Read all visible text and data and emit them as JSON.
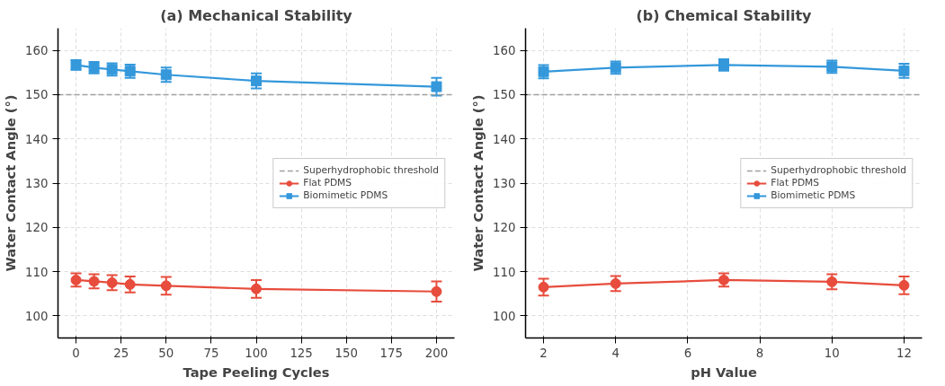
{
  "chart_data": [
    {
      "type": "line",
      "title": "(a) Mechanical Stability",
      "xlabel": "Tape Peeling Cycles",
      "ylabel": "Water Contact Angle (°)",
      "x": [
        0,
        10,
        20,
        30,
        50,
        100,
        200
      ],
      "xlim": [
        -10,
        210
      ],
      "xticks": [
        0,
        25,
        50,
        75,
        100,
        125,
        150,
        175,
        200
      ],
      "ylim": [
        95,
        165
      ],
      "yticks": [
        100,
        110,
        120,
        130,
        140,
        150,
        160
      ],
      "grid": true,
      "legend": "right",
      "ref_lines": [
        {
          "axis": "y",
          "value": 150,
          "label": "Superhydrophobic threshold",
          "color": "#a0a0a0",
          "line_style": "dashed"
        }
      ],
      "series": [
        {
          "name": "Flat PDMS",
          "color": "#e74c3c",
          "marker": "circle",
          "values": [
            108.1,
            107.8,
            107.5,
            107.1,
            106.8,
            106.1,
            105.5
          ],
          "errors": [
            1.5,
            1.6,
            1.7,
            1.8,
            2.0,
            2.0,
            2.3
          ]
        },
        {
          "name": "Biomimetic PDMS",
          "color": "#3498db",
          "marker": "square",
          "values": [
            156.7,
            156.1,
            155.7,
            155.3,
            154.5,
            153.1,
            151.8
          ],
          "errors": [
            1.1,
            1.3,
            1.4,
            1.5,
            1.6,
            1.7,
            2.0
          ]
        }
      ]
    },
    {
      "type": "line",
      "title": "(b) Chemical Stability",
      "xlabel": "pH Value",
      "ylabel": "Water Contact Angle (°)",
      "x": [
        2,
        4,
        7,
        10,
        12
      ],
      "xlim": [
        1.5,
        12.5
      ],
      "xticks": [
        2,
        4,
        6,
        8,
        10,
        12
      ],
      "ylim": [
        95,
        165
      ],
      "yticks": [
        100,
        110,
        120,
        130,
        140,
        150,
        160
      ],
      "grid": true,
      "legend": "right",
      "ref_lines": [
        {
          "axis": "y",
          "value": 150,
          "label": "Superhydrophobic threshold",
          "color": "#a0a0a0",
          "line_style": "dashed"
        }
      ],
      "series": [
        {
          "name": "Flat PDMS",
          "color": "#e74c3c",
          "marker": "circle",
          "values": [
            106.5,
            107.3,
            108.1,
            107.7,
            106.9
          ],
          "errors": [
            1.9,
            1.7,
            1.5,
            1.7,
            2.0
          ]
        },
        {
          "name": "Biomimetic PDMS",
          "color": "#3498db",
          "marker": "square",
          "values": [
            155.2,
            156.1,
            156.7,
            156.3,
            155.4
          ],
          "errors": [
            1.5,
            1.4,
            1.3,
            1.4,
            1.6
          ]
        }
      ]
    }
  ]
}
